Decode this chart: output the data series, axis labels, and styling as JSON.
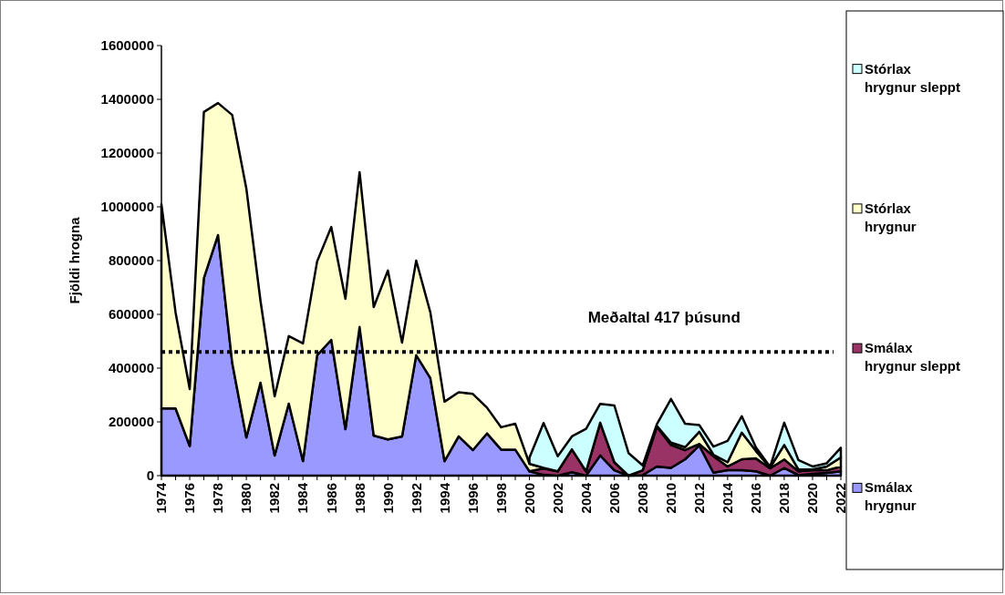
{
  "chart_data": {
    "type": "area",
    "stacked": true,
    "ylabel": "Fjöldi hrogna",
    "categories": [
      "1974",
      null,
      "1976",
      null,
      "1978",
      null,
      "1980",
      null,
      "1982",
      null,
      "1984",
      null,
      "1986",
      null,
      "1988",
      null,
      "1990",
      null,
      "1992",
      null,
      "1994",
      null,
      "1996",
      null,
      "1998",
      null,
      "2000",
      null,
      "2002",
      null,
      "2004",
      null,
      "2006",
      null,
      "2008",
      null,
      "2010",
      null,
      "2012",
      null,
      "2014",
      null,
      "2016",
      null,
      "2018",
      null,
      "2020",
      null,
      "2022"
    ],
    "series": [
      {
        "name": "Smálax hrygnur",
        "color": "#9999ff",
        "values": [
          250000,
          250000,
          110000,
          735000,
          895000,
          420000,
          142000,
          346000,
          75000,
          268000,
          54000,
          448000,
          505000,
          173000,
          553000,
          149000,
          135000,
          146000,
          448000,
          363000,
          54000,
          146000,
          95000,
          157000,
          97000,
          97000,
          16000,
          3000,
          0,
          13000,
          0,
          75000,
          20000,
          0,
          2000,
          34000,
          29000,
          61000,
          112000,
          11000,
          20000,
          20000,
          16000,
          0,
          28000,
          2000,
          7000,
          10000,
          16000
        ]
      },
      {
        "name": "Smálax hrygnur sleppt",
        "color": "#993366",
        "values": [
          null,
          null,
          null,
          null,
          null,
          null,
          null,
          null,
          null,
          null,
          null,
          null,
          null,
          null,
          null,
          null,
          null,
          null,
          null,
          null,
          null,
          null,
          null,
          null,
          null,
          null,
          0,
          24000,
          16000,
          85000,
          16000,
          122000,
          30000,
          0,
          18000,
          148000,
          85000,
          34000,
          6000,
          61000,
          14000,
          41000,
          48000,
          27000,
          32000,
          14000,
          13000,
          10000,
          18000
        ]
      },
      {
        "name": "Stórlax hrygnur",
        "color": "#ffffcc",
        "values": [
          760000,
          357000,
          212000,
          618000,
          491000,
          922000,
          926000,
          304000,
          220000,
          251000,
          438000,
          349000,
          420000,
          485000,
          576000,
          478000,
          628000,
          349000,
          352000,
          244000,
          221000,
          164000,
          209000,
          96000,
          83000,
          96000,
          28000,
          2000,
          0,
          0,
          0,
          0,
          0,
          0,
          0,
          3000,
          9000,
          11000,
          45000,
          6000,
          16000,
          99000,
          28000,
          3000,
          54000,
          7000,
          3000,
          14000,
          34000
        ]
      },
      {
        "name": "Stórlax hrygnur sleppt",
        "color": "#ccffff",
        "values": [
          null,
          null,
          null,
          null,
          null,
          null,
          null,
          null,
          null,
          null,
          null,
          null,
          null,
          null,
          null,
          null,
          null,
          null,
          null,
          null,
          null,
          null,
          null,
          null,
          null,
          null,
          23000,
          167000,
          56000,
          48000,
          158000,
          70000,
          211000,
          84000,
          18000,
          6000,
          162000,
          87000,
          25000,
          30000,
          79000,
          61000,
          13000,
          3000,
          83000,
          35000,
          11000,
          12000,
          36000
        ]
      }
    ],
    "ylim": [
      0,
      1600000
    ],
    "yticks": [
      0,
      200000,
      400000,
      600000,
      800000,
      1000000,
      1200000,
      1400000,
      1600000
    ],
    "ref_lines": [
      {
        "axis": "y",
        "value": 460000,
        "label": "Meðaltal 417 þúsund",
        "line_style": "dotted",
        "color": "#000000"
      }
    ],
    "legend": "right",
    "grid": false
  }
}
